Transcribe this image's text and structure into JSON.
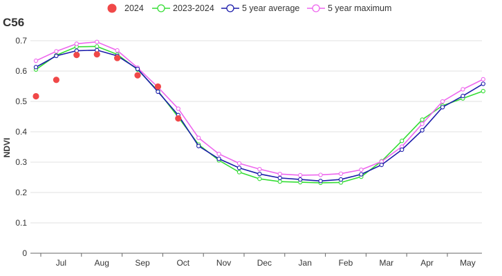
{
  "chart_data": {
    "type": "line",
    "title": "C56",
    "ylabel": "NDVI",
    "xlabel": "",
    "ylim": [
      0,
      0.7
    ],
    "yticks": [
      0,
      0.1,
      0.2,
      0.3,
      0.4,
      0.5,
      0.6,
      0.7
    ],
    "ytick_labels": [
      "0",
      "0.1",
      "0.2",
      "0.3",
      "0.4",
      "0.5",
      "0.6",
      "0.7"
    ],
    "month_labels": [
      "Jul",
      "Aug",
      "Sep",
      "Oct",
      "Nov",
      "Dec",
      "Jan",
      "Feb",
      "Mar",
      "Apr",
      "May"
    ],
    "x_points": 24,
    "grid": "horizontal",
    "legend_position": "top-center",
    "series": [
      {
        "name": "2024",
        "style": "scatter",
        "color": "#f04848",
        "values": [
          0.517,
          0.571,
          0.653,
          0.655,
          0.643,
          0.586,
          0.549,
          0.444
        ]
      },
      {
        "name": "2023-2024",
        "style": "line",
        "color": "#33dd33",
        "values": [
          0.605,
          0.652,
          0.68,
          0.681,
          0.655,
          0.605,
          0.535,
          0.448,
          0.358,
          0.306,
          0.267,
          0.245,
          0.236,
          0.234,
          0.232,
          0.233,
          0.252,
          0.303,
          0.37,
          0.44,
          0.486,
          0.51,
          0.534
        ]
      },
      {
        "name": "5 year average",
        "style": "line",
        "color": "#1a1aaa",
        "values": [
          0.613,
          0.65,
          0.667,
          0.669,
          0.65,
          0.607,
          0.532,
          0.455,
          0.353,
          0.311,
          0.281,
          0.261,
          0.248,
          0.243,
          0.238,
          0.243,
          0.26,
          0.291,
          0.341,
          0.405,
          0.481,
          0.518,
          0.558
        ]
      },
      {
        "name": "5 year maximum",
        "style": "line",
        "color": "#ee66ee",
        "values": [
          0.634,
          0.665,
          0.69,
          0.696,
          0.668,
          0.611,
          0.547,
          0.476,
          0.38,
          0.327,
          0.296,
          0.277,
          0.261,
          0.257,
          0.258,
          0.262,
          0.275,
          0.302,
          0.351,
          0.426,
          0.5,
          0.54,
          0.573
        ]
      }
    ]
  }
}
